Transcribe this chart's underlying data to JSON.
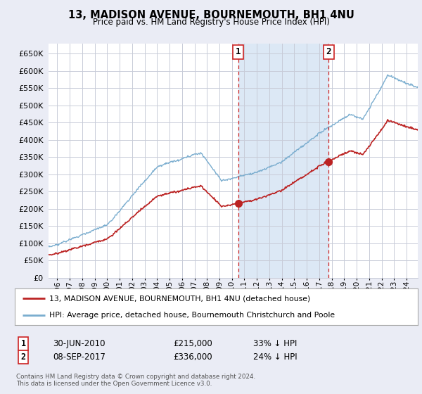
{
  "title": "13, MADISON AVENUE, BOURNEMOUTH, BH1 4NU",
  "subtitle": "Price paid vs. HM Land Registry's House Price Index (HPI)",
  "legend_line1": "13, MADISON AVENUE, BOURNEMOUTH, BH1 4NU (detached house)",
  "legend_line2": "HPI: Average price, detached house, Bournemouth Christchurch and Poole",
  "footnote": "Contains HM Land Registry data © Crown copyright and database right 2024.\nThis data is licensed under the Open Government Licence v3.0.",
  "annotation1": {
    "label": "1",
    "date": "30-JUN-2010",
    "price": "£215,000",
    "pct": "33% ↓ HPI"
  },
  "annotation2": {
    "label": "2",
    "date": "08-SEP-2017",
    "price": "£336,000",
    "pct": "24% ↓ HPI"
  },
  "ylim": [
    0,
    680000
  ],
  "yticks": [
    0,
    50000,
    100000,
    150000,
    200000,
    250000,
    300000,
    350000,
    400000,
    450000,
    500000,
    550000,
    600000,
    650000
  ],
  "hpi_color": "#7aadcf",
  "price_color": "#bb2222",
  "annotation_color": "#cc2222",
  "background_color": "#eaecf5",
  "plot_bg_color": "#ffffff",
  "grid_color": "#c8ccd8",
  "shaded_color": "#dce8f5",
  "sale1_year": 2010.5,
  "sale1_price": 215000,
  "sale2_year": 2017.75,
  "sale2_price": 336000,
  "xmin": 1995.3,
  "xmax": 2024.9
}
